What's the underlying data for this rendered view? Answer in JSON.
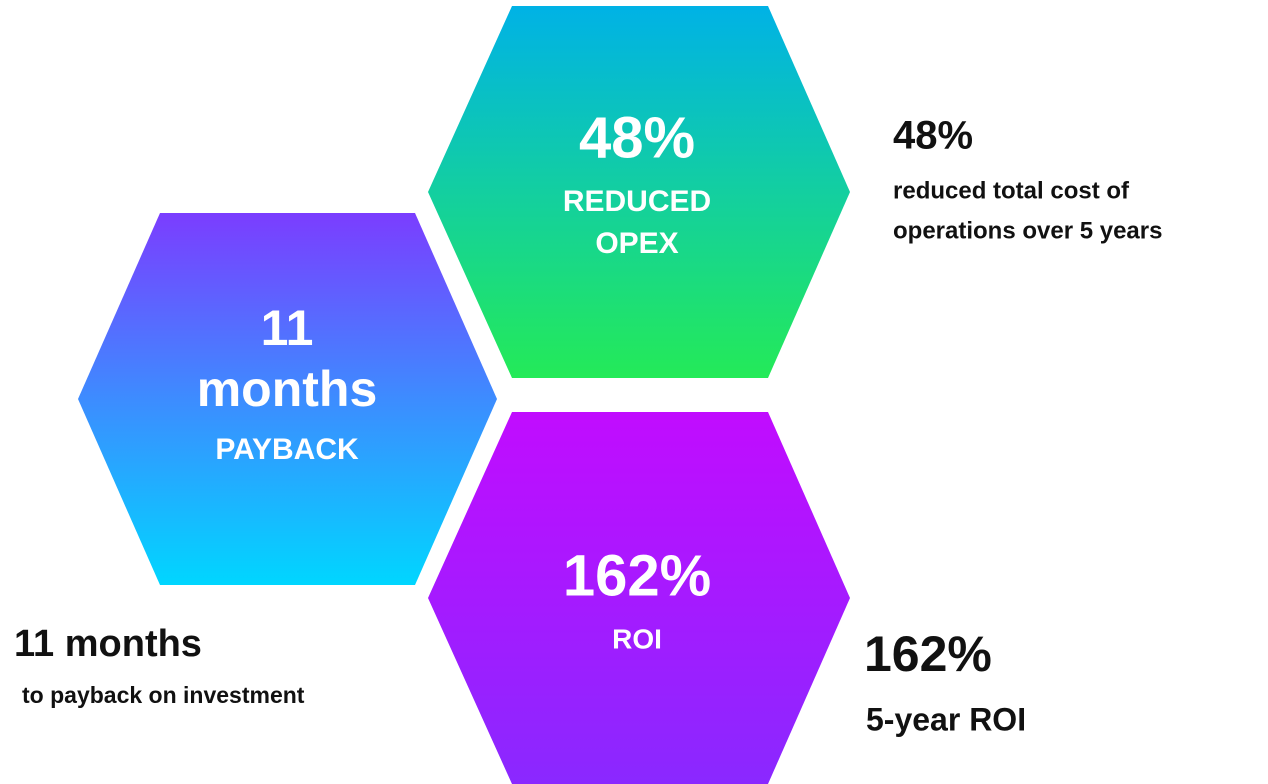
{
  "hexagons": [
    {
      "lines": [
        "48%",
        "REDUCED",
        "OPEX"
      ]
    },
    {
      "lines": [
        "11",
        "months",
        "PAYBACK"
      ]
    },
    {
      "lines": [
        "162%",
        "ROI"
      ]
    }
  ],
  "captions": [
    {
      "headline": "48%",
      "description": [
        "reduced total cost of",
        "operations over 5 years"
      ]
    },
    {
      "headline": "11 months",
      "description": [
        "to payback on investment"
      ]
    },
    {
      "headline": "162%",
      "description": [
        "5-year ROI"
      ]
    }
  ]
}
